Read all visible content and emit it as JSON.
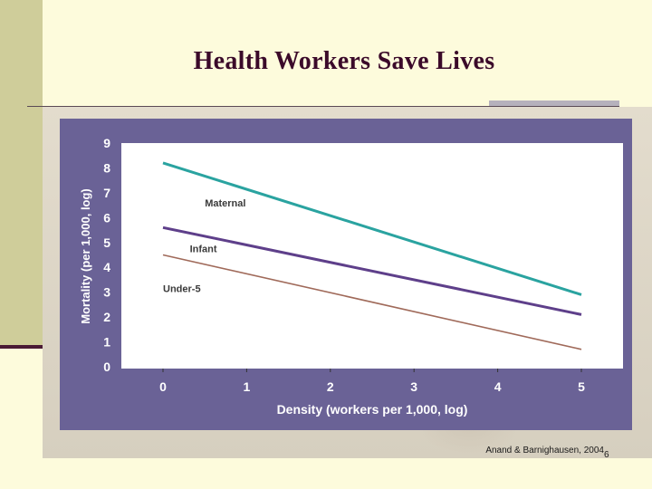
{
  "slide": {
    "title": "Health Workers Save Lives",
    "source": "Anand & Barnighausen, 2004",
    "page_number": "6"
  },
  "chart_data": {
    "type": "line",
    "xlabel": "Density (workers per 1,000, log)",
    "ylabel": "Mortality (per 1,000, log)",
    "xlim": [
      0,
      5
    ],
    "ylim": [
      0,
      9
    ],
    "x_ticks": [
      "0",
      "1",
      "2",
      "3",
      "4",
      "5"
    ],
    "y_ticks": [
      "0",
      "1",
      "2",
      "3",
      "4",
      "5",
      "6",
      "7",
      "8",
      "9"
    ],
    "grid": false,
    "legend": "inline labels",
    "series": [
      {
        "name": "Maternal",
        "color": "#2aa3a0",
        "x": [
          0,
          5
        ],
        "y": [
          8.2,
          2.9
        ],
        "label_at": [
          0.5,
          6.6
        ]
      },
      {
        "name": "Infant",
        "color": "#5e3f8a",
        "x": [
          0,
          5
        ],
        "y": [
          5.6,
          2.1
        ],
        "label_at": [
          0.32,
          4.75
        ]
      },
      {
        "name": "Under-5",
        "color": "#a06a5a",
        "x": [
          0,
          5
        ],
        "y": [
          4.5,
          0.7
        ],
        "label_at": [
          0.0,
          3.15
        ]
      }
    ]
  }
}
